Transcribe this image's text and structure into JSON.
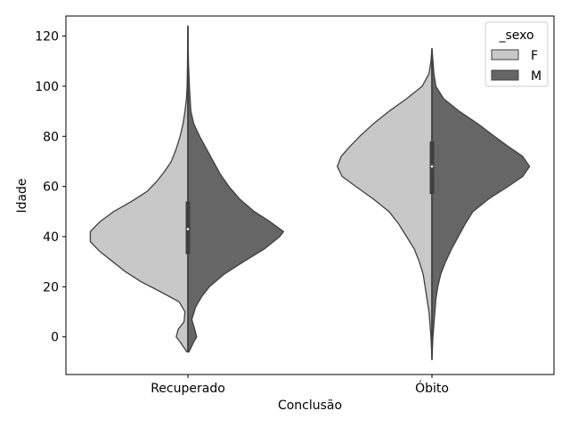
{
  "chart_data": {
    "type": "violin",
    "split": true,
    "title": "",
    "xlabel": "Conclusão",
    "ylabel": "Idade",
    "ylim": [
      -15,
      128
    ],
    "yticks": [
      0,
      20,
      40,
      60,
      80,
      100,
      120
    ],
    "categories": [
      "Recuperado",
      "Óbito"
    ],
    "legend": {
      "title": "_sexo",
      "position": "top-right",
      "entries": [
        {
          "name": "F",
          "color": "#c8c8c8"
        },
        {
          "name": "M",
          "color": "#666666"
        }
      ]
    },
    "series": [
      {
        "name": "F",
        "color": "#c8c8c8",
        "violins": [
          {
            "category": "Recuperado",
            "density": [
              [
                -6,
                0.01
              ],
              [
                -2,
                0.08
              ],
              [
                0,
                0.12
              ],
              [
                3,
                0.1
              ],
              [
                6,
                0.04
              ],
              [
                10,
                0.03
              ],
              [
                14,
                0.09
              ],
              [
                18,
                0.28
              ],
              [
                22,
                0.48
              ],
              [
                26,
                0.64
              ],
              [
                30,
                0.77
              ],
              [
                34,
                0.9
              ],
              [
                38,
                1.0
              ],
              [
                42,
                1.0
              ],
              [
                46,
                0.9
              ],
              [
                50,
                0.76
              ],
              [
                54,
                0.58
              ],
              [
                58,
                0.42
              ],
              [
                62,
                0.32
              ],
              [
                66,
                0.24
              ],
              [
                70,
                0.17
              ],
              [
                75,
                0.12
              ],
              [
                80,
                0.08
              ],
              [
                85,
                0.05
              ],
              [
                90,
                0.03
              ],
              [
                95,
                0.015
              ],
              [
                100,
                0.008
              ],
              [
                110,
                0.004
              ],
              [
                118,
                0.002
              ],
              [
                124,
                0.0
              ]
            ]
          },
          {
            "category": "Óbito",
            "density": [
              [
                -9,
                0.0
              ],
              [
                0,
                0.01
              ],
              [
                5,
                0.02
              ],
              [
                10,
                0.03
              ],
              [
                15,
                0.05
              ],
              [
                20,
                0.07
              ],
              [
                25,
                0.09
              ],
              [
                30,
                0.13
              ],
              [
                35,
                0.18
              ],
              [
                40,
                0.26
              ],
              [
                45,
                0.34
              ],
              [
                50,
                0.44
              ],
              [
                55,
                0.6
              ],
              [
                60,
                0.78
              ],
              [
                64,
                0.92
              ],
              [
                68,
                0.97
              ],
              [
                72,
                0.93
              ],
              [
                76,
                0.84
              ],
              [
                80,
                0.74
              ],
              [
                85,
                0.6
              ],
              [
                90,
                0.44
              ],
              [
                95,
                0.26
              ],
              [
                100,
                0.1
              ],
              [
                105,
                0.03
              ],
              [
                110,
                0.01
              ],
              [
                115,
                0.0
              ]
            ]
          }
        ]
      },
      {
        "name": "M",
        "color": "#666666",
        "violins": [
          {
            "category": "Recuperado",
            "density": [
              [
                -6,
                0.01
              ],
              [
                -2,
                0.06
              ],
              [
                0,
                0.09
              ],
              [
                3,
                0.07
              ],
              [
                7,
                0.04
              ],
              [
                12,
                0.08
              ],
              [
                16,
                0.14
              ],
              [
                20,
                0.22
              ],
              [
                25,
                0.37
              ],
              [
                30,
                0.57
              ],
              [
                35,
                0.78
              ],
              [
                40,
                0.94
              ],
              [
                42,
                0.98
              ],
              [
                46,
                0.84
              ],
              [
                50,
                0.68
              ],
              [
                55,
                0.53
              ],
              [
                60,
                0.42
              ],
              [
                65,
                0.33
              ],
              [
                70,
                0.26
              ],
              [
                75,
                0.19
              ],
              [
                80,
                0.12
              ],
              [
                85,
                0.06
              ],
              [
                90,
                0.03
              ],
              [
                100,
                0.015
              ],
              [
                110,
                0.005
              ],
              [
                118,
                0.002
              ],
              [
                124,
                0.0
              ]
            ]
          },
          {
            "category": "Óbito",
            "density": [
              [
                -9,
                0.0
              ],
              [
                0,
                0.01
              ],
              [
                5,
                0.02
              ],
              [
                10,
                0.03
              ],
              [
                15,
                0.04
              ],
              [
                20,
                0.06
              ],
              [
                25,
                0.09
              ],
              [
                30,
                0.14
              ],
              [
                35,
                0.2
              ],
              [
                40,
                0.27
              ],
              [
                45,
                0.34
              ],
              [
                50,
                0.42
              ],
              [
                55,
                0.58
              ],
              [
                60,
                0.78
              ],
              [
                64,
                0.93
              ],
              [
                68,
                1.0
              ],
              [
                72,
                0.93
              ],
              [
                76,
                0.78
              ],
              [
                80,
                0.64
              ],
              [
                85,
                0.47
              ],
              [
                90,
                0.28
              ],
              [
                95,
                0.12
              ],
              [
                100,
                0.04
              ],
              [
                105,
                0.02
              ],
              [
                110,
                0.01
              ],
              [
                115,
                0.0
              ]
            ]
          }
        ]
      }
    ],
    "quartiles": [
      {
        "category": "Recuperado",
        "q1": 33,
        "median": 43,
        "q3": 54,
        "whisker_low": -6,
        "whisker_high": 124
      },
      {
        "category": "Óbito",
        "q1": 57,
        "median": 68,
        "q3": 78,
        "whisker_low": -9,
        "whisker_high": 115
      }
    ]
  }
}
